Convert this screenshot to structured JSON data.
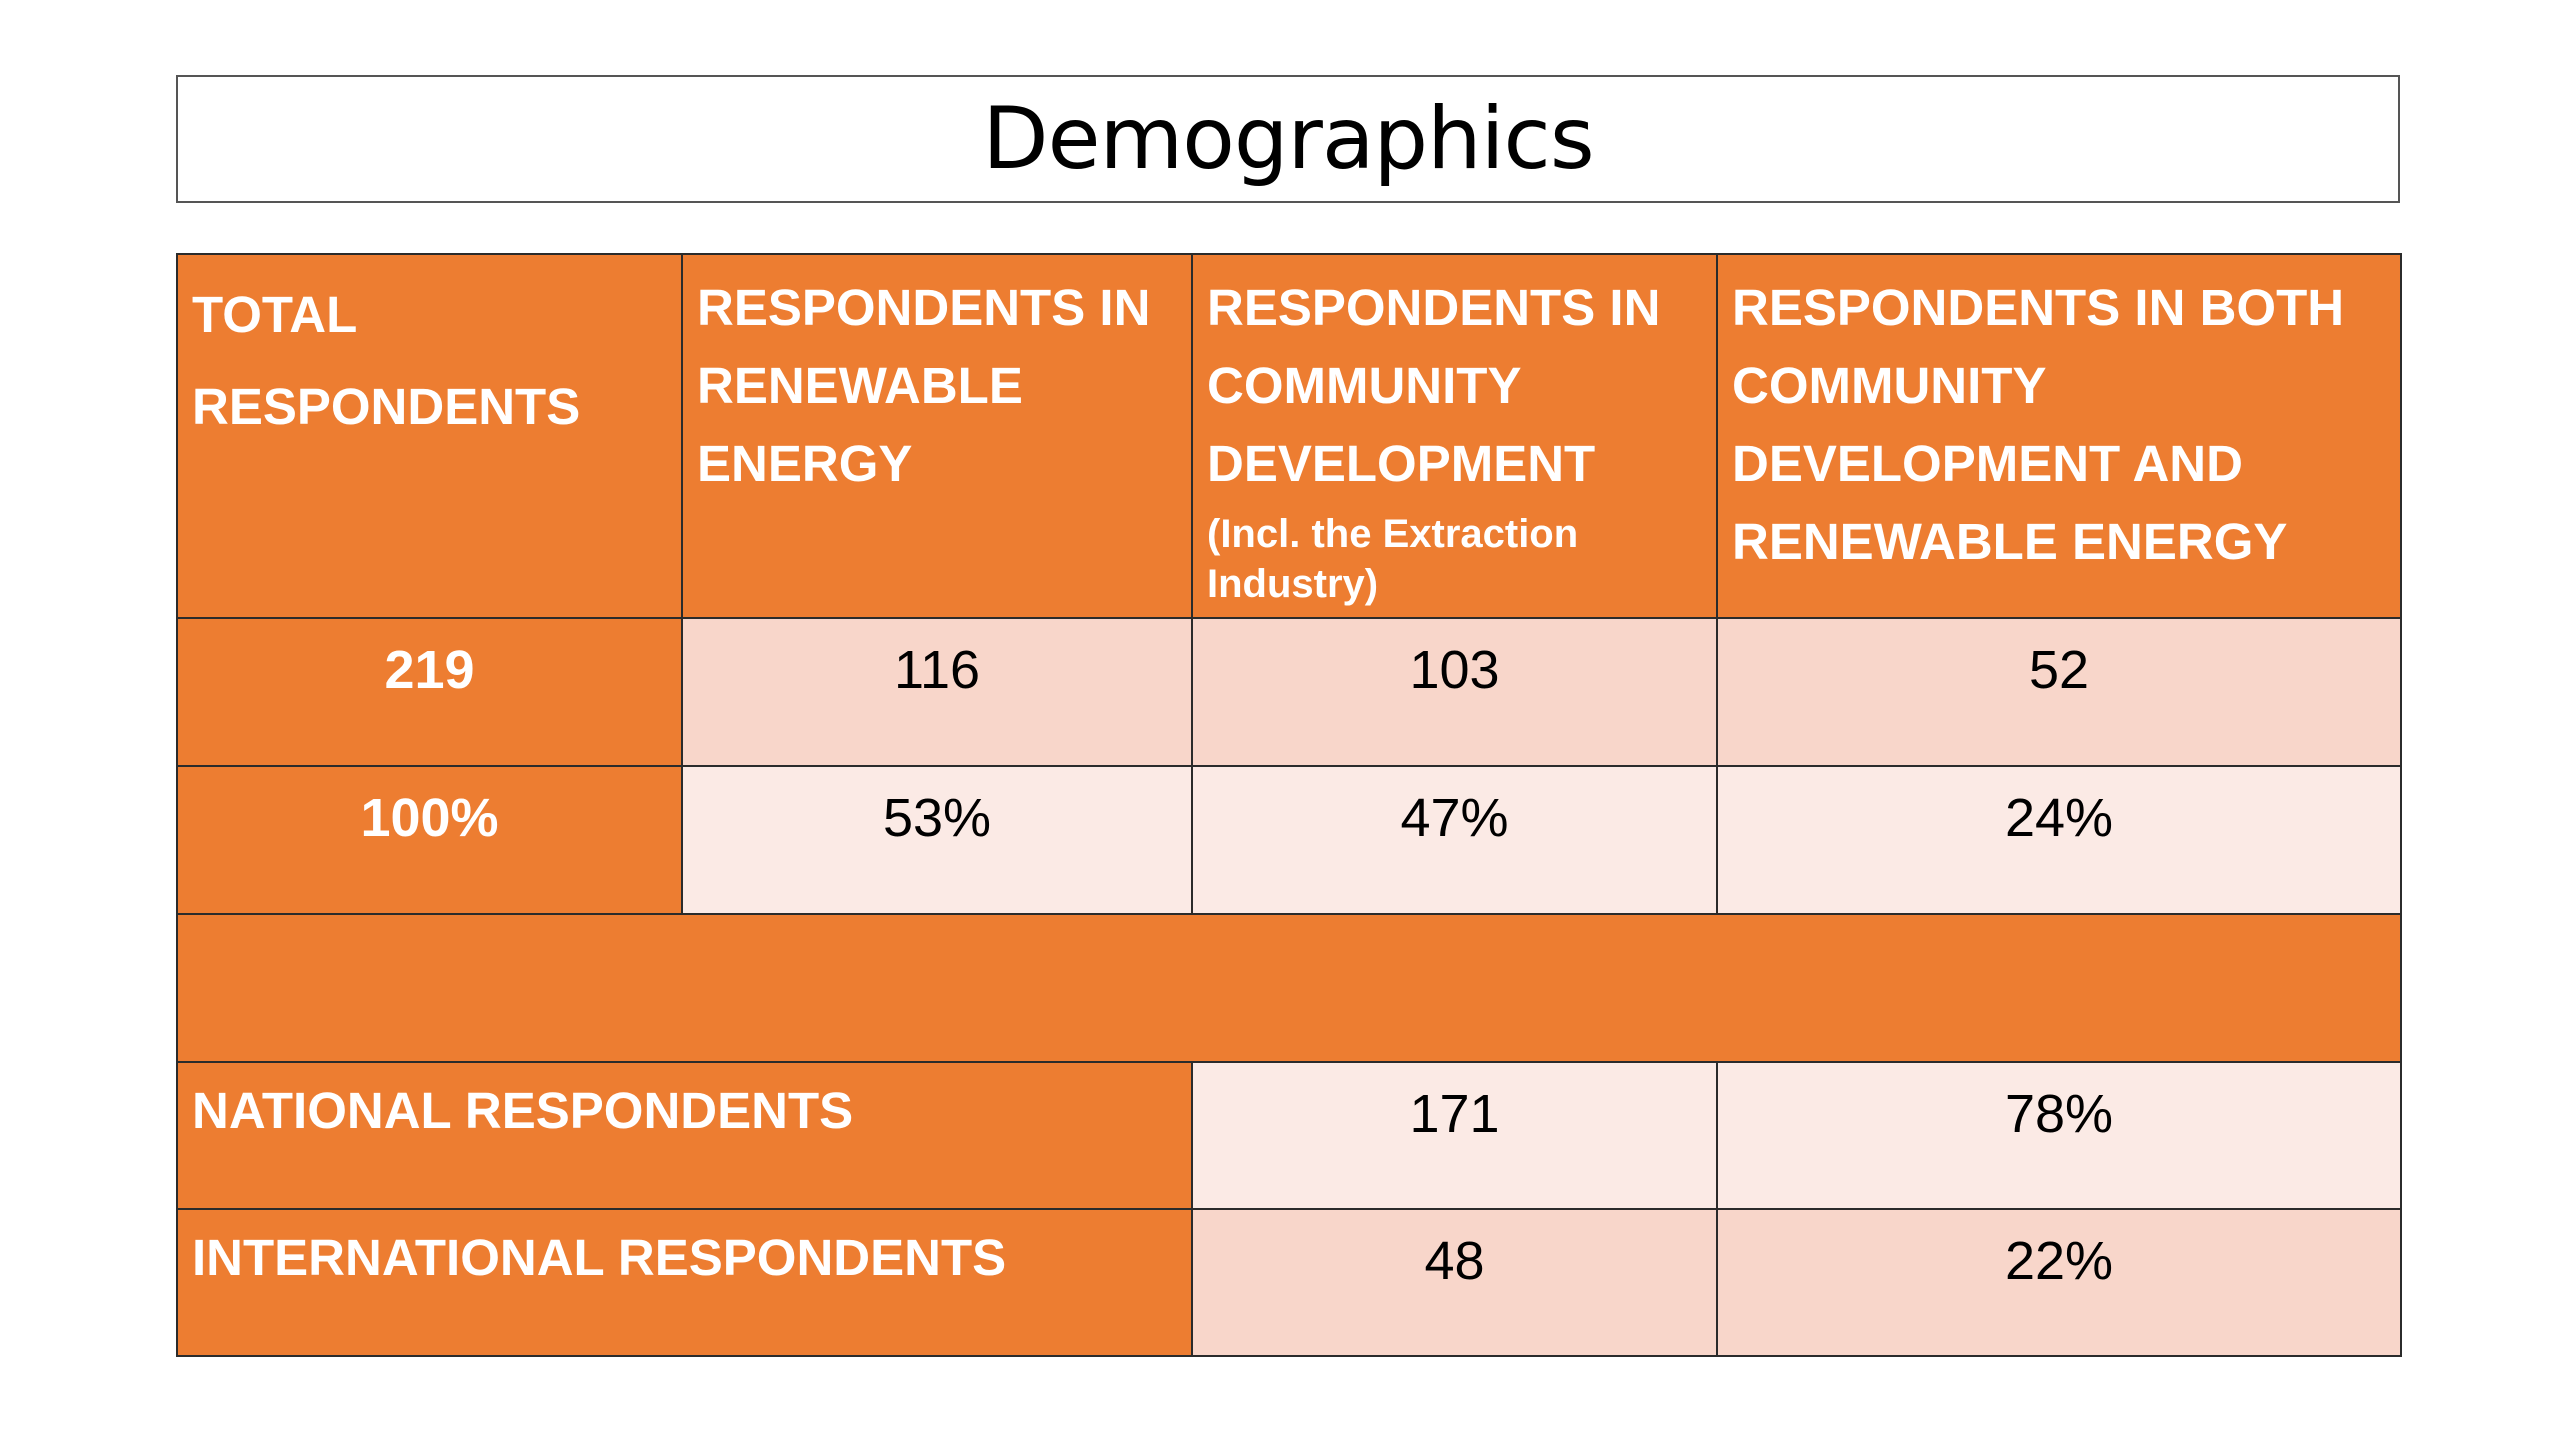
{
  "title": "Demographics",
  "table": {
    "headers": {
      "total": [
        "TOTAL",
        "RESPONDENTS"
      ],
      "renewable": [
        "RESPONDENTS IN",
        "RENEWABLE",
        "ENERGY"
      ],
      "community": [
        "RESPONDENTS IN",
        "COMMUNITY",
        "DEVELOPMENT"
      ],
      "community_note": [
        "(Incl. the Extraction",
        "Industry)"
      ],
      "both": [
        "RESPONDENTS IN BOTH",
        "COMMUNITY",
        "DEVELOPMENT AND",
        "RENEWABLE ENERGY"
      ]
    },
    "counts": {
      "total": "219",
      "renewable": "116",
      "community": "103",
      "both": "52"
    },
    "percents": {
      "total": "100%",
      "renewable": "53%",
      "community": "47%",
      "both": "24%"
    },
    "national": {
      "label": "NATIONAL RESPONDENTS",
      "count": "171",
      "percent": "78%"
    },
    "international": {
      "label": "INTERNATIONAL RESPONDENTS",
      "count": "48",
      "percent": "22%"
    }
  },
  "colors": {
    "orange": "#ed7d31",
    "light_peach": "#fbeae5",
    "dark_peach": "#f8d6ca",
    "border": "#2b2b2b"
  }
}
